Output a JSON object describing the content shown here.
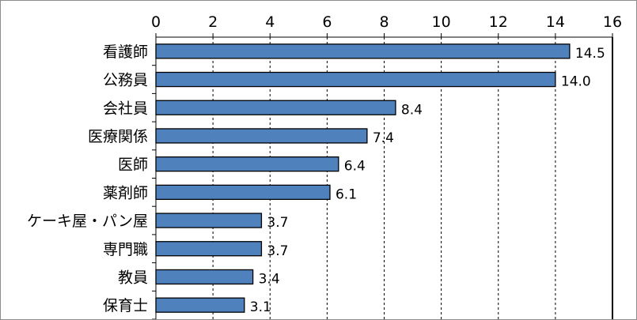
{
  "chart_data": {
    "type": "bar",
    "orientation": "horizontal",
    "categories": [
      "看護師",
      "公務員",
      "会社員",
      "医療関係",
      "医師",
      "薬剤師",
      "ケーキ屋・パン屋",
      "専門職",
      "教員",
      "保育士"
    ],
    "values": [
      14.5,
      14.0,
      8.4,
      7.4,
      6.4,
      6.1,
      3.7,
      3.7,
      3.4,
      3.1
    ],
    "value_labels": [
      "14.5",
      "14.0",
      "8.4",
      "7.4",
      "6.4",
      "6.1",
      "3.7",
      "3.7",
      "3.4",
      "3.1"
    ],
    "xticks": [
      "0",
      "2",
      "4",
      "6",
      "8",
      "10",
      "12",
      "14",
      "16"
    ],
    "xlim": [
      0,
      16
    ],
    "x_axis_position": "top",
    "grid": "vertical dashed",
    "bar_color": "#4f81bd",
    "bar_edge_color": "#000000",
    "title": "",
    "xlabel": "",
    "ylabel": ""
  }
}
